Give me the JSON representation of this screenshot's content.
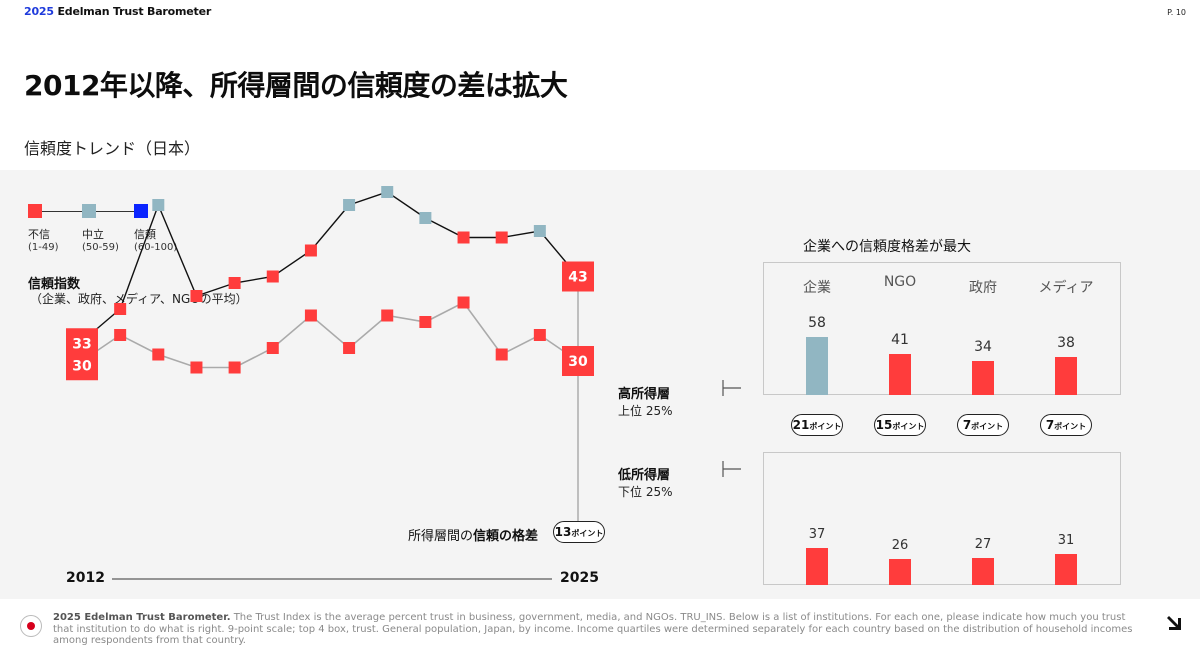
{
  "header": {
    "brand_year": "2025",
    "brand_name": "Edelman Trust Barometer",
    "page": "P. 10"
  },
  "title": "2012年以降、所得層間の信頼度の差は拡大",
  "subtitle": "信頼度トレンド（日本）",
  "legend": [
    {
      "label": "不信",
      "range": "(1-49)",
      "color": "#ff3c3c"
    },
    {
      "label": "中立",
      "range": "(50-59)",
      "color": "#91b6c2"
    },
    {
      "label": "信頼",
      "range": "(60-100)",
      "color": "#0a24ff"
    }
  ],
  "trust_index": {
    "title": "信頼指数",
    "subtitle": "（企業、政府、メディア、NGOの平均）"
  },
  "groups": {
    "high": {
      "name": "高所得層",
      "quartile": "上位 25%"
    },
    "low": {
      "name": "低所得層",
      "quartile": "下位 25%"
    }
  },
  "gap": {
    "prefix": "所得層間の",
    "emphasis": "信頼の格差",
    "value": "13",
    "unit": "ポイント"
  },
  "chart_data": [
    {
      "type": "line",
      "x": [
        2012,
        2013,
        2014,
        2015,
        2016,
        2017,
        2018,
        2019,
        2020,
        2021,
        2022,
        2023,
        2024,
        2025
      ],
      "x_axis": {
        "start_label": "2012",
        "end_label": "2025"
      },
      "series": [
        {
          "name": "高所得層",
          "values": [
            33,
            38,
            54,
            40,
            42,
            43,
            47,
            54,
            56,
            52,
            49,
            49,
            50,
            43
          ]
        },
        {
          "name": "低所得層",
          "values": [
            30,
            34,
            31,
            29,
            29,
            32,
            37,
            32,
            37,
            36,
            39,
            31,
            34,
            30
          ]
        }
      ],
      "labeled_points": [
        {
          "series": "高所得層",
          "x": 2012,
          "label": "33"
        },
        {
          "series": "低所得層",
          "x": 2012,
          "label": "30"
        },
        {
          "series": "高所得層",
          "x": 2025,
          "label": "43"
        },
        {
          "series": "低所得層",
          "x": 2025,
          "label": "30"
        }
      ],
      "color_scale": {
        "distrust_max": 49,
        "neutral_max": 59
      }
    },
    {
      "type": "bar",
      "title": "企業への信頼度格差が最大",
      "categories": [
        "企業",
        "NGO",
        "政府",
        "メディア"
      ],
      "series": [
        {
          "name": "高所得層",
          "values": [
            58,
            41,
            34,
            38
          ]
        },
        {
          "name": "低所得層",
          "values": [
            37,
            26,
            27,
            31
          ]
        }
      ],
      "gaps": [
        {
          "value": "21",
          "unit": "ポイント"
        },
        {
          "value": "15",
          "unit": "ポイント"
        },
        {
          "value": "7",
          "unit": "ポイント"
        },
        {
          "value": "7",
          "unit": "ポイント"
        }
      ]
    }
  ],
  "footer": {
    "lead": "2025 Edelman Trust Barometer.",
    "text": " The Trust Index is the average percent trust in business, government, media, and NGOs. TRU_INS. Below is a list of institutions. For each one, please indicate how much you trust that institution to do what is right. 9-point scale; top 4 box, trust. General population, Japan, by income. Income quartiles were determined separately for each country based on the distribution of household incomes among respondents from that country."
  },
  "icons": {
    "flag": "japan-flag-icon",
    "next": "arrow-down-right-icon"
  }
}
